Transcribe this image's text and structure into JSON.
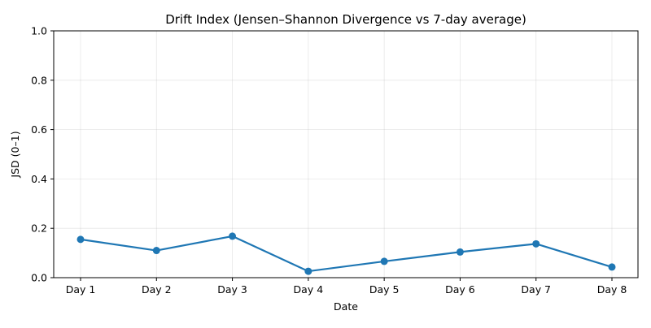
{
  "chart_data": {
    "type": "line",
    "title": "Drift Index (Jensen–Shannon Divergence vs 7-day average)",
    "xlabel": "Date",
    "ylabel": "JSD (0–1)",
    "categories": [
      "Day 1",
      "Day 2",
      "Day 3",
      "Day 4",
      "Day 5",
      "Day 6",
      "Day 7",
      "Day 8"
    ],
    "series": [
      {
        "values": [
          0.155,
          0.11,
          0.168,
          0.026,
          0.066,
          0.104,
          0.137,
          0.043
        ]
      }
    ],
    "ylim": [
      0,
      1
    ],
    "yticks": [
      "0.0",
      "0.2",
      "0.4",
      "0.6",
      "0.8",
      "1.0"
    ],
    "grid": true,
    "colors": {
      "line": "#1f77b4",
      "grid": "#b0b0b0",
      "axis": "#000000"
    }
  }
}
